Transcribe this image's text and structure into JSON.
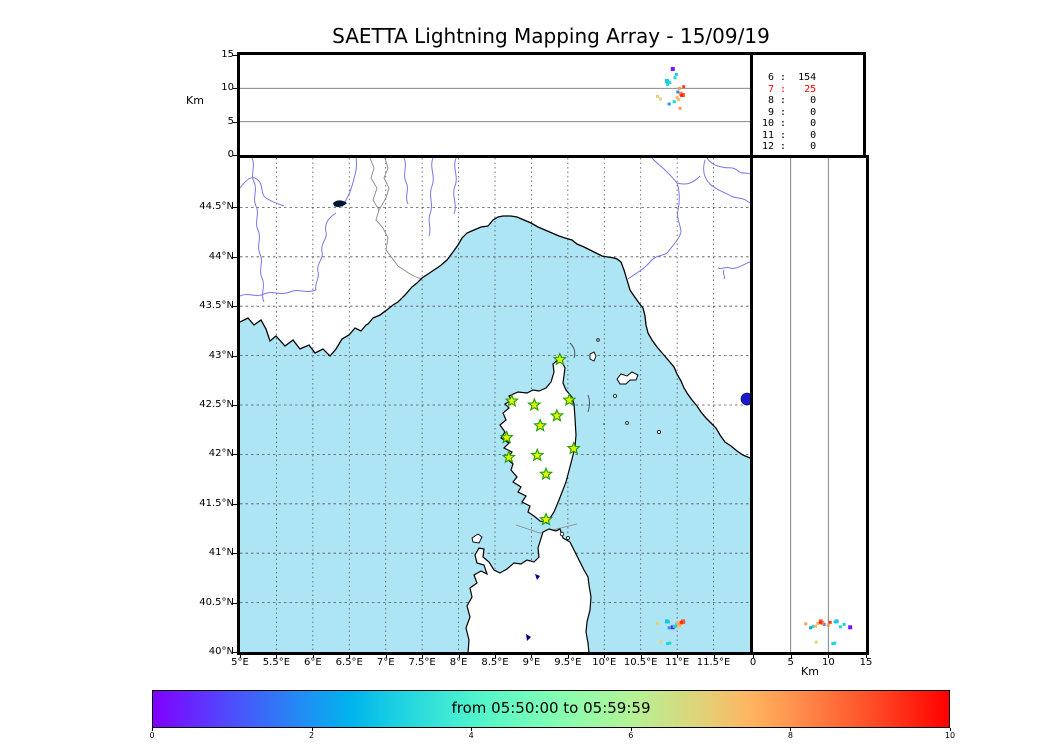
{
  "title": "SAETTA Lightning Mapping Array - 15/09/19",
  "altitude_axis_label": "Km",
  "colorbar": {
    "label": "from 05:50:00 to 05:59:59",
    "ticks": [
      {
        "v": 0,
        "t": "0"
      },
      {
        "v": 2,
        "t": "2"
      },
      {
        "v": 4,
        "t": "4"
      },
      {
        "v": 6,
        "t": "6"
      },
      {
        "v": 8,
        "t": "8"
      },
      {
        "v": 10,
        "t": "10"
      }
    ]
  },
  "axes": {
    "lon_ticks": [
      {
        "v": 5,
        "t": "5°E"
      },
      {
        "v": 5.5,
        "t": "5.5°E"
      },
      {
        "v": 6,
        "t": "6°E"
      },
      {
        "v": 6.5,
        "t": "6.5°E"
      },
      {
        "v": 7,
        "t": "7°E"
      },
      {
        "v": 7.5,
        "t": "7.5°E"
      },
      {
        "v": 8,
        "t": "8°E"
      },
      {
        "v": 8.5,
        "t": "8.5°E"
      },
      {
        "v": 9,
        "t": "9°E"
      },
      {
        "v": 9.5,
        "t": "9.5°E"
      },
      {
        "v": 10,
        "t": "10°E"
      },
      {
        "v": 10.5,
        "t": "10.5°E"
      },
      {
        "v": 11,
        "t": "11°E"
      },
      {
        "v": 11.5,
        "t": "11.5°E"
      }
    ],
    "lat_ticks": [
      {
        "v": 40,
        "t": "40°N"
      },
      {
        "v": 40.5,
        "t": "40.5°N"
      },
      {
        "v": 41,
        "t": "41°N"
      },
      {
        "v": 41.5,
        "t": "41.5°N"
      },
      {
        "v": 42,
        "t": "42°N"
      },
      {
        "v": 42.5,
        "t": "42.5°N"
      },
      {
        "v": 43,
        "t": "43°N"
      },
      {
        "v": 43.5,
        "t": "43.5°N"
      },
      {
        "v": 44,
        "t": "44°N"
      },
      {
        "v": 44.5,
        "t": "44.5°N"
      }
    ],
    "alt_ticks": [
      {
        "v": 0,
        "t": "0"
      },
      {
        "v": 5,
        "t": "5"
      },
      {
        "v": 10,
        "t": "10"
      },
      {
        "v": 15,
        "t": "15"
      }
    ]
  },
  "chart_data": {
    "type": "scatter",
    "title": "SAETTA Lightning Mapping Array - 15/09/19",
    "time_window": "from 05:50:00 to 05:59:59",
    "colormap": "rainbow",
    "color_scale": {
      "min": 0,
      "max": 10,
      "ticks": [
        0,
        2,
        4,
        6,
        8,
        10
      ]
    },
    "map_extent": {
      "lon_range": [
        5,
        12
      ],
      "lat_range": [
        40,
        45
      ],
      "alt_range_km": [
        0,
        15
      ]
    },
    "source_counts": [
      {
        "bin": "6",
        "count": "154",
        "highlight": false
      },
      {
        "bin": "7",
        "count": "25",
        "highlight": true
      },
      {
        "bin": "8",
        "count": "0",
        "highlight": false
      },
      {
        "bin": "9",
        "count": "0",
        "highlight": false
      },
      {
        "bin": "10",
        "count": "0",
        "highlight": false
      },
      {
        "bin": "11",
        "count": "0",
        "highlight": false
      },
      {
        "bin": "12",
        "count": "0",
        "highlight": false
      }
    ],
    "highlight_color": "#FF0000",
    "station_marker": {
      "shape": "star",
      "fill": "#E8F500",
      "stroke": "#1E9E00"
    },
    "sea_color": "#AEE5F5",
    "stations": [
      {
        "lon": 9.39,
        "lat": 42.96
      },
      {
        "lon": 8.73,
        "lat": 42.54
      },
      {
        "lon": 9.04,
        "lat": 42.5
      },
      {
        "lon": 9.52,
        "lat": 42.55
      },
      {
        "lon": 9.35,
        "lat": 42.39
      },
      {
        "lon": 9.12,
        "lat": 42.29
      },
      {
        "lon": 8.66,
        "lat": 42.17
      },
      {
        "lon": 9.58,
        "lat": 42.06
      },
      {
        "lon": 9.08,
        "lat": 41.99
      },
      {
        "lon": 8.69,
        "lat": 41.97
      },
      {
        "lon": 9.2,
        "lat": 41.8
      },
      {
        "lon": 9.2,
        "lat": 41.34
      }
    ],
    "flashes": [
      {
        "lon": 10.94,
        "lat": 40.25,
        "alt": 12.9,
        "t": 0.3,
        "s": 4
      },
      {
        "lon": 10.99,
        "lat": 40.28,
        "alt": 12.1,
        "t": 3.0,
        "s": 3
      },
      {
        "lon": 10.97,
        "lat": 40.255,
        "alt": 11.6,
        "t": 3.2,
        "s": 3
      },
      {
        "lon": 10.86,
        "lat": 40.31,
        "alt": 11.1,
        "t": 2.9,
        "s": 4
      },
      {
        "lon": 10.88,
        "lat": 40.305,
        "alt": 10.9,
        "t": 3.0,
        "s": 3
      },
      {
        "lon": 11.09,
        "lat": 40.3,
        "alt": 10.25,
        "t": 9.2,
        "s": 3
      },
      {
        "lon": 11.01,
        "lat": 40.28,
        "alt": 9.45,
        "t": 1.8,
        "s": 3
      },
      {
        "lon": 11.05,
        "lat": 40.295,
        "alt": 9.2,
        "t": 8.2,
        "s": 4
      },
      {
        "lon": 11.08,
        "lat": 40.31,
        "alt": 9.0,
        "t": 8.8,
        "s": 4
      },
      {
        "lon": 10.73,
        "lat": 40.29,
        "alt": 8.8,
        "t": 6.9,
        "s": 3
      },
      {
        "lon": 11.0,
        "lat": 40.29,
        "alt": 8.6,
        "t": 7.6,
        "s": 3
      },
      {
        "lon": 10.96,
        "lat": 40.26,
        "alt": 8.0,
        "t": 3.1,
        "s": 3
      },
      {
        "lon": 10.89,
        "lat": 40.245,
        "alt": 7.65,
        "t": 2.1,
        "s": 3
      },
      {
        "lon": 11.04,
        "lat": 40.285,
        "alt": 7.0,
        "t": 7.9,
        "s": 3
      },
      {
        "lon": 10.77,
        "lat": 40.1,
        "alt": 8.4,
        "t": 6.8,
        "s": 3
      },
      {
        "lon": 10.87,
        "lat": 40.085,
        "alt": 10.6,
        "t": 3.0,
        "s": 3
      },
      {
        "lon": 10.9,
        "lat": 40.09,
        "alt": 10.85,
        "t": 3.2,
        "s": 3
      },
      {
        "lon": 11.06,
        "lat": 40.3,
        "alt": 8.95,
        "t": 9.5,
        "s": 3
      },
      {
        "lon": 11.03,
        "lat": 40.27,
        "alt": 10.0,
        "t": 8.0,
        "s": 3
      },
      {
        "lon": 11.02,
        "lat": 40.26,
        "alt": 8.3,
        "t": 7.3,
        "s": 3
      }
    ]
  }
}
